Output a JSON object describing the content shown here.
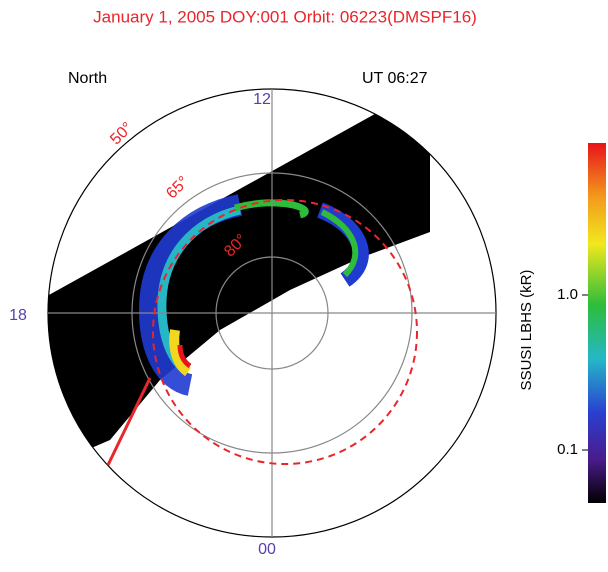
{
  "header": {
    "title": "January 1, 2005 DOY:001   Orbit: 06223(DMSPF16)"
  },
  "labels": {
    "hemisphere": "North",
    "time": "UT 06:27"
  },
  "mlt_labels": {
    "top": "12",
    "left": "18",
    "bottom": "00"
  },
  "latitude_labels": [
    "50°",
    "65°",
    "80°"
  ],
  "colorbar": {
    "title": "SSUSI LBHS  (kR)",
    "tick_labels": [
      "1.0",
      "0.1"
    ]
  }
}
